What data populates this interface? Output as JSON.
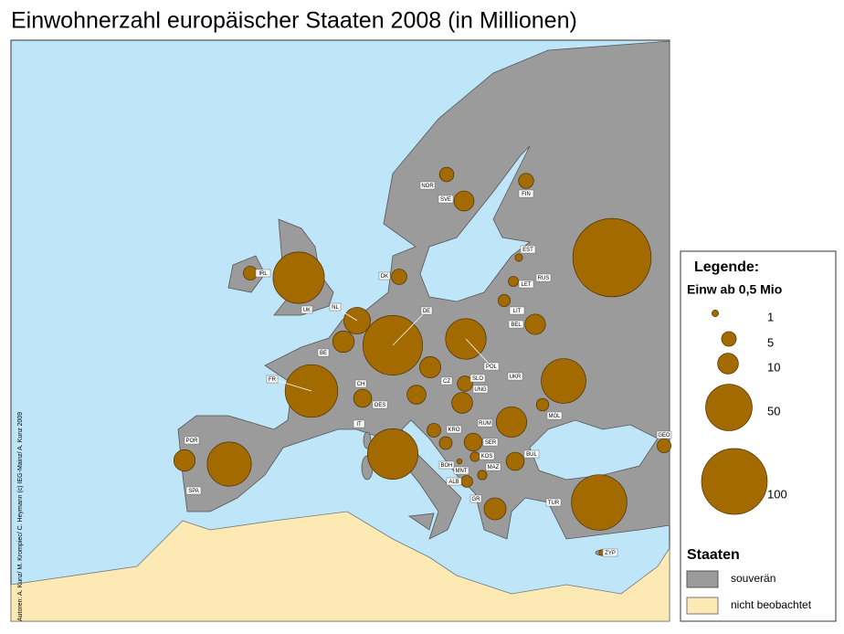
{
  "title": "Einwohnerzahl europäischer Staaten 2008 (in Millionen)",
  "credit": "Autoren: A. Kunz/ M. Krompiec/ C. Heymann (c) IEG-Mainz/ A. Kunz 2009",
  "countries": [
    {
      "label": "NOR",
      "population": 4.8
    },
    {
      "label": "SVE",
      "population": 9.2
    },
    {
      "label": "FIN",
      "population": 5.3
    },
    {
      "label": "EST",
      "population": 1.3
    },
    {
      "label": "LET",
      "population": 2.3
    },
    {
      "label": "RUS",
      "population": 142
    },
    {
      "label": "LIT",
      "population": 3.4
    },
    {
      "label": "BEL",
      "population": 9.7
    },
    {
      "label": "DK",
      "population": 5.5
    },
    {
      "label": "IRL",
      "population": 4.4
    },
    {
      "label": "UK",
      "population": 61
    },
    {
      "label": "NL",
      "population": 16.4
    },
    {
      "label": "BE",
      "population": 10.7
    },
    {
      "label": "DE",
      "population": 82
    },
    {
      "label": "POL",
      "population": 38
    },
    {
      "label": "FR",
      "population": 64
    },
    {
      "label": "CH",
      "population": 7.6
    },
    {
      "label": "CZ",
      "population": 10.4
    },
    {
      "label": "SLO",
      "population": 5.4
    },
    {
      "label": "UKR",
      "population": 46
    },
    {
      "label": "UNG",
      "population": 10
    },
    {
      "label": "OES",
      "population": 8.3
    },
    {
      "label": "IT",
      "population": 59
    },
    {
      "label": "MOL",
      "population": 3.6
    },
    {
      "label": "RUM",
      "population": 21.5
    },
    {
      "label": "KRO",
      "population": 4.4
    },
    {
      "label": "SER",
      "population": 7.4
    },
    {
      "label": "BOH",
      "population": 3.8
    },
    {
      "label": "KOS",
      "population": 2.1
    },
    {
      "label": "MNT",
      "population": 0.6
    },
    {
      "label": "MAZ",
      "population": 2
    },
    {
      "label": "ALB",
      "population": 3.2
    },
    {
      "label": "BUL",
      "population": 7.6
    },
    {
      "label": "GR",
      "population": 11.2
    },
    {
      "label": "TUR",
      "population": 71
    },
    {
      "label": "GEO",
      "population": 4.4
    },
    {
      "label": "ZYP",
      "population": 0.8
    },
    {
      "label": "POR",
      "population": 10.6
    },
    {
      "label": "SPA",
      "population": 45
    }
  ],
  "legend": {
    "title": "Legende:",
    "subtitle": "Einw ab 0,5 Mio",
    "sizes": [
      1,
      5,
      10,
      50,
      100
    ]
  },
  "states_legend": {
    "title": "Staaten",
    "items": [
      "souverän",
      "nicht beobachtet"
    ]
  }
}
